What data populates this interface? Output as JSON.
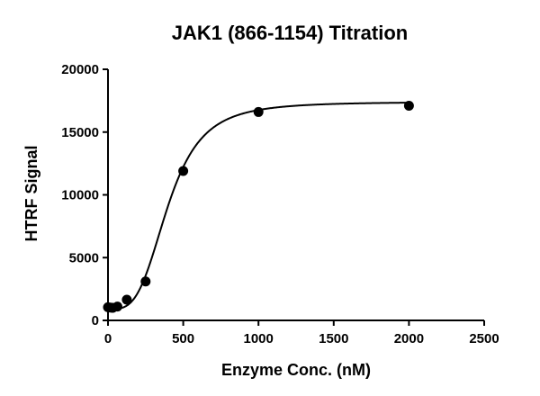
{
  "chart_data": {
    "type": "scatter",
    "title": "JAK1 (866-1154) Titration",
    "xlabel": "Enzyme Conc. (nM)",
    "ylabel": "HTRF Signal",
    "xlim": [
      0,
      2500
    ],
    "ylim": [
      0,
      20000
    ],
    "xticks": [
      0,
      500,
      1000,
      1500,
      2000,
      2500
    ],
    "yticks": [
      0,
      5000,
      10000,
      15000,
      20000
    ],
    "xtick_labels": [
      "0",
      "500",
      "1000",
      "1500",
      "2000",
      "2500"
    ],
    "ytick_labels": [
      "0",
      "5000",
      "10000",
      "15000",
      "20000"
    ],
    "grid": false,
    "legend": "none",
    "series": [
      {
        "points": [
          {
            "x": 0,
            "y": 1050
          },
          {
            "x": 15.6,
            "y": 1020
          },
          {
            "x": 31.25,
            "y": 1000
          },
          {
            "x": 62.5,
            "y": 1100
          },
          {
            "x": 125,
            "y": 1650
          },
          {
            "x": 250,
            "y": 3100
          },
          {
            "x": 500,
            "y": 11900
          },
          {
            "x": 1000,
            "y": 16600
          },
          {
            "x": 2000,
            "y": 17100
          }
        ],
        "fit_curve": {
          "model": "sigmoidal",
          "bottom": 900,
          "top": 17400,
          "ec50": 400,
          "hill": 3.5
        },
        "color": "#000000"
      }
    ]
  }
}
